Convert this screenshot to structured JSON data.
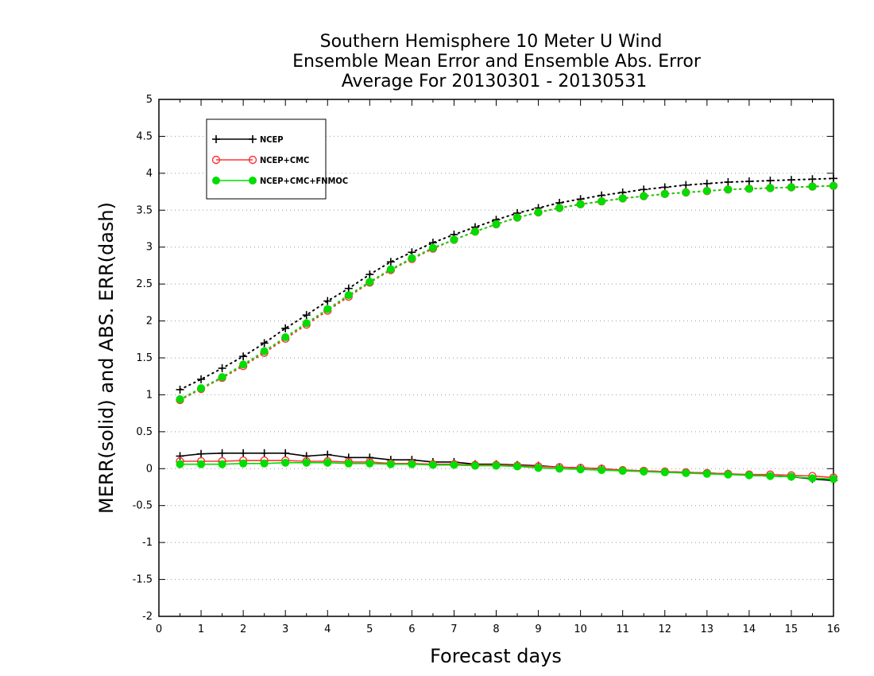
{
  "chart_data": {
    "type": "line",
    "title": [
      "Southern Hemisphere 10 Meter U Wind",
      "Ensemble Mean Error and Ensemble Abs. Error",
      "Average For 20130301 - 20130531"
    ],
    "xlabel": "Forecast days",
    "ylabel": "MERR(solid) and ABS. ERR(dash)",
    "xlim": [
      0,
      16
    ],
    "ylim": [
      -2,
      5
    ],
    "xticks": [
      "0",
      "1",
      "2",
      "3",
      "4",
      "5",
      "6",
      "7",
      "8",
      "9",
      "10",
      "11",
      "12",
      "13",
      "14",
      "15",
      "16"
    ],
    "yticks": [
      "-2",
      "-1.5",
      "-1",
      "-0.5",
      "0",
      "0.5",
      "1",
      "1.5",
      "2",
      "2.5",
      "3",
      "3.5",
      "4",
      "4.5",
      "5"
    ],
    "grid": "horizontal-dotted",
    "legend_position": "top-left",
    "x": [
      0.5,
      1,
      1.5,
      2,
      2.5,
      3,
      3.5,
      4,
      4.5,
      5,
      5.5,
      6,
      6.5,
      7,
      7.5,
      8,
      8.5,
      9,
      9.5,
      10,
      10.5,
      11,
      11.5,
      12,
      12.5,
      13,
      13.5,
      14,
      14.5,
      15,
      15.5,
      16
    ],
    "series": [
      {
        "name": "NCEP",
        "color": "#000000",
        "marker": "plus",
        "abs_err": [
          1.07,
          1.21,
          1.36,
          1.52,
          1.7,
          1.9,
          2.08,
          2.27,
          2.44,
          2.63,
          2.8,
          2.93,
          3.06,
          3.17,
          3.27,
          3.37,
          3.46,
          3.53,
          3.6,
          3.65,
          3.7,
          3.74,
          3.78,
          3.81,
          3.84,
          3.86,
          3.88,
          3.89,
          3.9,
          3.91,
          3.92,
          3.93
        ],
        "mean_err": [
          0.17,
          0.2,
          0.21,
          0.21,
          0.21,
          0.21,
          0.17,
          0.19,
          0.15,
          0.15,
          0.12,
          0.12,
          0.09,
          0.09,
          0.06,
          0.06,
          0.05,
          0.04,
          0.02,
          0.01,
          0.0,
          -0.02,
          -0.03,
          -0.04,
          -0.05,
          -0.06,
          -0.07,
          -0.09,
          -0.1,
          -0.11,
          -0.14,
          -0.16
        ]
      },
      {
        "name": "NCEP+CMC",
        "color": "#ff3333",
        "marker": "open-circle",
        "abs_err": [
          0.93,
          1.08,
          1.23,
          1.39,
          1.57,
          1.76,
          1.95,
          2.14,
          2.33,
          2.52,
          2.69,
          2.84,
          2.98,
          3.1,
          3.21,
          3.31,
          3.4,
          3.47,
          3.53,
          3.58,
          3.62,
          3.66,
          3.69,
          3.72,
          3.74,
          3.76,
          3.78,
          3.79,
          3.8,
          3.81,
          3.82,
          3.83
        ],
        "mean_err": [
          0.1,
          0.1,
          0.1,
          0.11,
          0.11,
          0.11,
          0.1,
          0.1,
          0.09,
          0.09,
          0.07,
          0.07,
          0.06,
          0.06,
          0.05,
          0.05,
          0.04,
          0.03,
          0.02,
          0.01,
          0.0,
          -0.02,
          -0.03,
          -0.04,
          -0.05,
          -0.06,
          -0.07,
          -0.08,
          -0.08,
          -0.09,
          -0.1,
          -0.12
        ]
      },
      {
        "name": "NCEP+CMC+FNMOC",
        "color": "#00dd00",
        "marker": "filled-circle",
        "abs_err": [
          0.94,
          1.09,
          1.24,
          1.41,
          1.59,
          1.78,
          1.97,
          2.16,
          2.35,
          2.53,
          2.7,
          2.85,
          2.99,
          3.1,
          3.21,
          3.31,
          3.4,
          3.47,
          3.53,
          3.58,
          3.62,
          3.66,
          3.69,
          3.72,
          3.74,
          3.76,
          3.78,
          3.79,
          3.8,
          3.81,
          3.82,
          3.83
        ],
        "mean_err": [
          0.06,
          0.06,
          0.06,
          0.07,
          0.07,
          0.08,
          0.08,
          0.08,
          0.07,
          0.07,
          0.06,
          0.06,
          0.05,
          0.05,
          0.04,
          0.04,
          0.03,
          0.01,
          0.0,
          -0.01,
          -0.02,
          -0.03,
          -0.04,
          -0.05,
          -0.06,
          -0.07,
          -0.08,
          -0.09,
          -0.1,
          -0.11,
          -0.13,
          -0.14
        ]
      }
    ]
  }
}
